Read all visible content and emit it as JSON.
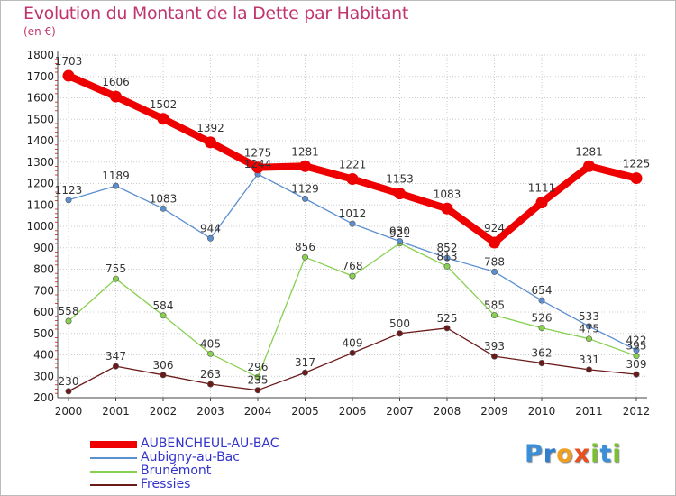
{
  "title": "Evolution du Montant de la Dette par Habitant",
  "unit_label": "(en €)",
  "chart_data": {
    "type": "line",
    "x": [
      "2000",
      "2001",
      "2002",
      "2003",
      "2004",
      "2005",
      "2006",
      "2007",
      "2008",
      "2009",
      "2010",
      "2011",
      "2012"
    ],
    "yticks": [
      "200",
      "300",
      "400",
      "500",
      "600",
      "700",
      "800",
      "900",
      "1000",
      "1100",
      "1200",
      "1300",
      "1400",
      "1500",
      "1600",
      "1700",
      "1800"
    ],
    "ylim": [
      200,
      1800
    ],
    "grid": true,
    "legend_position": "bottom-left",
    "series": [
      {
        "name": "AUBENCHEUL-AU-BAC",
        "color": "#ee0000",
        "values": [
          1703,
          1606,
          1502,
          1392,
          1275,
          1281,
          1221,
          1153,
          1083,
          924,
          1111,
          1281,
          1225
        ],
        "labels": [
          "1703",
          "1606",
          "1502",
          "1392",
          "1275",
          "1281",
          "1221",
          "1153",
          "1083",
          "924",
          "1111",
          "1281",
          "1225"
        ]
      },
      {
        "name": "Aubigny-au-Bac",
        "color": "#5b8fd0",
        "values": [
          1123,
          1189,
          1083,
          944,
          1244,
          1129,
          1012,
          930,
          852,
          788,
          654,
          533,
          422
        ],
        "labels": [
          "1123",
          "1189",
          "1083",
          "944",
          "1244",
          "1129",
          "1012",
          "930",
          "852",
          "788",
          "654",
          "533",
          "422"
        ]
      },
      {
        "name": "Brunémont",
        "color": "#88d050",
        "values": [
          558,
          755,
          584,
          405,
          296,
          856,
          768,
          921,
          813,
          585,
          526,
          475,
          395
        ],
        "labels": [
          "558",
          "755",
          "584",
          "405",
          "296",
          "856",
          "768",
          "921",
          "813",
          "585",
          "526",
          "475",
          "395"
        ]
      },
      {
        "name": "Fressies",
        "color": "#6b1a1a",
        "values": [
          230,
          347,
          306,
          263,
          235,
          317,
          409,
          500,
          525,
          393,
          362,
          331,
          309
        ],
        "labels": [
          "230",
          "347",
          "306",
          "263",
          "235",
          "317",
          "409",
          "500",
          "525",
          "393",
          "362",
          "331",
          "309"
        ]
      }
    ]
  },
  "logo": {
    "letters": [
      "P",
      "r",
      "o",
      "x",
      "i",
      "t",
      "i"
    ],
    "colors": [
      "#3a8fd8",
      "#2f7fd0",
      "#f0a020",
      "#e85020",
      "#7ac030",
      "#3a8fd8",
      "#7ac030"
    ]
  }
}
